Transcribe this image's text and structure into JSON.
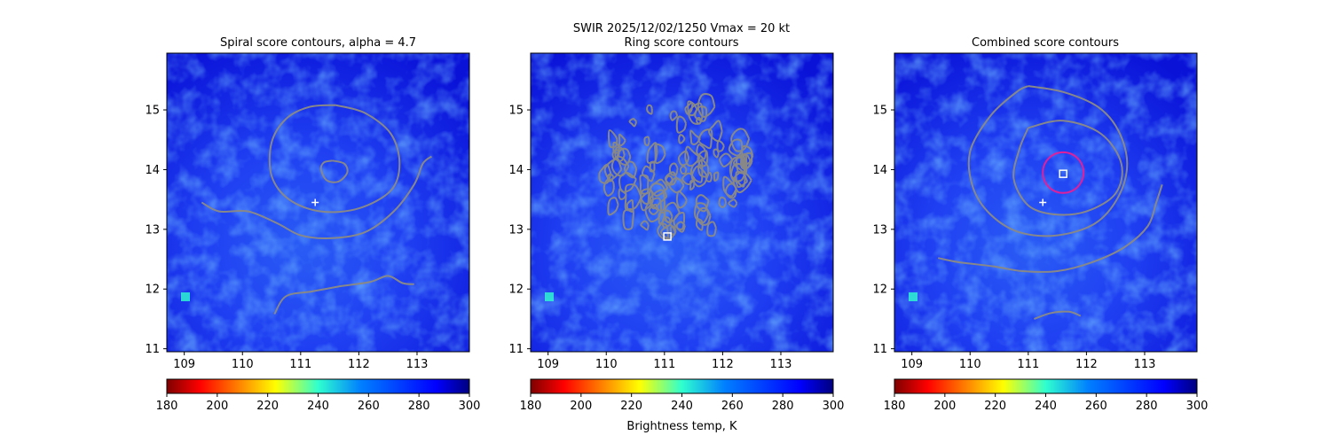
{
  "suptitle_line1": "SWIR  2025/12/02/1250    Vmax = 20 kt",
  "colorbar_label": "Brightness temp, K",
  "colors": {
    "contour": "#888888",
    "ring": "#e0209a",
    "marker": "#ffffff",
    "field_base": "#1a2ef0"
  },
  "chart_data": [
    {
      "type": "heatmap",
      "title": "Spiral score contours, alpha =  4.7",
      "xlim": [
        108.7,
        113.9
      ],
      "ylim": [
        10.95,
        15.95
      ],
      "xticks": [
        109,
        110,
        111,
        112,
        113
      ],
      "yticks": [
        11,
        12,
        13,
        14,
        15
      ],
      "colormap": "jet",
      "clim": [
        180,
        300
      ],
      "colorbar_ticks": [
        180,
        200,
        220,
        240,
        260,
        280,
        300
      ],
      "colorbar_orientation": "horizontal",
      "markers": [
        {
          "kind": "plus",
          "x": 111.25,
          "y": 13.45
        }
      ],
      "contours": [
        {
          "name": "outer",
          "points": [
            [
              111.6,
              15.08
            ],
            [
              112.1,
              14.95
            ],
            [
              112.55,
              14.6
            ],
            [
              112.7,
              14.1
            ],
            [
              112.55,
              13.65
            ],
            [
              112.0,
              13.35
            ],
            [
              111.35,
              13.3
            ],
            [
              110.8,
              13.5
            ],
            [
              110.5,
              13.9
            ],
            [
              110.5,
              14.45
            ],
            [
              110.75,
              14.85
            ],
            [
              111.15,
              15.05
            ],
            [
              111.6,
              15.08
            ]
          ]
        },
        {
          "name": "inner",
          "points": [
            [
              111.55,
              14.15
            ],
            [
              111.75,
              14.1
            ],
            [
              111.8,
              13.95
            ],
            [
              111.65,
              13.8
            ],
            [
              111.45,
              13.82
            ],
            [
              111.35,
              14.0
            ],
            [
              111.4,
              14.12
            ],
            [
              111.55,
              14.15
            ]
          ]
        },
        {
          "name": "spiral-band",
          "points": [
            [
              109.3,
              13.45
            ],
            [
              109.6,
              13.3
            ],
            [
              110.1,
              13.3
            ],
            [
              110.6,
              13.1
            ],
            [
              111.0,
              12.9
            ],
            [
              111.5,
              12.85
            ],
            [
              112.1,
              12.95
            ],
            [
              112.6,
              13.3
            ],
            [
              112.95,
              13.75
            ],
            [
              113.1,
              14.1
            ],
            [
              113.25,
              14.22
            ]
          ]
        },
        {
          "name": "lower-band",
          "points": [
            [
              110.55,
              11.58
            ],
            [
              110.75,
              11.88
            ],
            [
              111.2,
              11.96
            ],
            [
              111.7,
              12.05
            ],
            [
              112.2,
              12.12
            ],
            [
              112.5,
              12.22
            ],
            [
              112.75,
              12.1
            ],
            [
              112.95,
              12.08
            ]
          ]
        }
      ]
    },
    {
      "type": "heatmap",
      "title": "Ring score contours",
      "xlim": [
        108.7,
        113.9
      ],
      "ylim": [
        10.95,
        15.95
      ],
      "xticks": [
        109,
        110,
        111,
        112,
        113
      ],
      "yticks": [
        11,
        12,
        13,
        14,
        15
      ],
      "colormap": "jet",
      "clim": [
        180,
        300
      ],
      "colorbar_ticks": [
        180,
        200,
        220,
        240,
        260,
        280,
        300
      ],
      "colorbar_orientation": "horizontal",
      "markers": [
        {
          "kind": "square",
          "x": 111.05,
          "y": 12.88
        }
      ],
      "contour_region": {
        "center": [
          111.2,
          14.0
        ],
        "radius_deg": 1.25
      }
    },
    {
      "type": "heatmap",
      "title": "Combined score contours",
      "xlim": [
        108.7,
        113.9
      ],
      "ylim": [
        10.95,
        15.95
      ],
      "xticks": [
        109,
        110,
        111,
        112,
        113
      ],
      "yticks": [
        11,
        12,
        13,
        14,
        15
      ],
      "colormap": "jet",
      "clim": [
        180,
        300
      ],
      "colorbar_ticks": [
        180,
        200,
        220,
        240,
        260,
        280,
        300
      ],
      "colorbar_orientation": "horizontal",
      "markers": [
        {
          "kind": "plus",
          "x": 111.25,
          "y": 13.45
        },
        {
          "kind": "square",
          "x": 111.6,
          "y": 13.93
        }
      ],
      "ring": {
        "x": 111.6,
        "y": 13.95,
        "radius_deg": 0.35
      },
      "contours": [
        {
          "name": "mid",
          "points": [
            [
              111.0,
              14.7
            ],
            [
              111.6,
              14.82
            ],
            [
              112.25,
              14.6
            ],
            [
              112.6,
              14.1
            ],
            [
              112.5,
              13.6
            ],
            [
              112.0,
              13.3
            ],
            [
              111.45,
              13.25
            ],
            [
              111.0,
              13.4
            ],
            [
              110.75,
              13.85
            ],
            [
              110.85,
              14.35
            ],
            [
              111.0,
              14.7
            ]
          ]
        },
        {
          "name": "outer-spiral",
          "points": [
            [
              111.0,
              15.4
            ],
            [
              111.6,
              15.3
            ],
            [
              112.2,
              15.05
            ],
            [
              112.55,
              14.65
            ],
            [
              112.7,
              14.1
            ],
            [
              112.55,
              13.55
            ],
            [
              112.15,
              13.1
            ],
            [
              111.5,
              12.9
            ],
            [
              110.85,
              12.95
            ],
            [
              110.35,
              13.25
            ],
            [
              110.05,
              13.7
            ],
            [
              110.0,
              14.3
            ],
            [
              110.35,
              14.9
            ],
            [
              110.8,
              15.3
            ],
            [
              111.0,
              15.4
            ]
          ]
        },
        {
          "name": "south-band",
          "points": [
            [
              109.45,
              12.52
            ],
            [
              109.8,
              12.45
            ],
            [
              110.4,
              12.38
            ],
            [
              110.9,
              12.3
            ],
            [
              111.5,
              12.3
            ],
            [
              112.1,
              12.45
            ],
            [
              112.65,
              12.7
            ],
            [
              113.05,
              13.05
            ],
            [
              113.2,
              13.45
            ],
            [
              113.3,
              13.75
            ]
          ]
        },
        {
          "name": "short-band",
          "points": [
            [
              111.1,
              11.5
            ],
            [
              111.4,
              11.6
            ],
            [
              111.7,
              11.62
            ],
            [
              111.9,
              11.55
            ]
          ]
        }
      ]
    }
  ]
}
